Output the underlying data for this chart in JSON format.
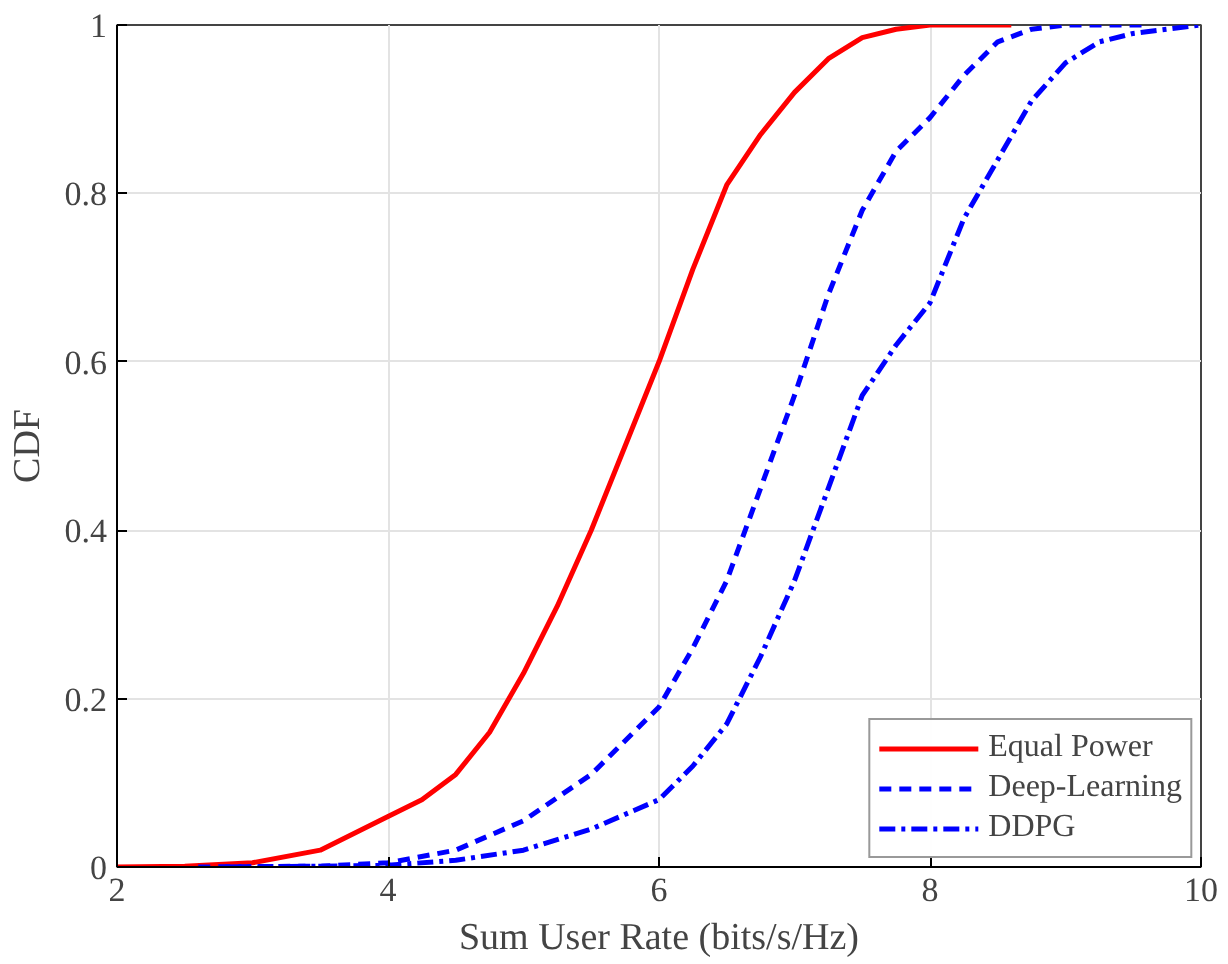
{
  "chart_data": {
    "type": "line",
    "xlabel": "Sum User Rate (bits/s/Hz)",
    "ylabel": "CDF",
    "xlim": [
      2,
      10
    ],
    "ylim": [
      0,
      1
    ],
    "xticks": [
      2,
      4,
      6,
      8,
      10
    ],
    "yticks": [
      0,
      {
        "value": 0.2,
        "label": "0.2"
      },
      {
        "value": 0.4,
        "label": "0.4"
      },
      {
        "value": 0.6,
        "label": "0.6"
      },
      {
        "value": 0.8,
        "label": "0.8"
      },
      1
    ],
    "grid": true,
    "legend": "bottom right",
    "marker": "none",
    "series": [
      {
        "name": "Equal Power",
        "color": "#ff0000",
        "line_style": "solid",
        "x": [
          2,
          2.5,
          3,
          3.5,
          4,
          4.25,
          4.5,
          4.75,
          5,
          5.25,
          5.5,
          5.75,
          6,
          6.25,
          6.5,
          6.75,
          7,
          7.25,
          7.5,
          7.75,
          8,
          8.6
        ],
        "values": [
          0,
          0.001,
          0.005,
          0.02,
          0.06,
          0.08,
          0.11,
          0.16,
          0.23,
          0.31,
          0.4,
          0.5,
          0.6,
          0.71,
          0.81,
          0.87,
          0.92,
          0.96,
          0.985,
          0.995,
          1,
          1
        ]
      },
      {
        "name": "Deep-Learning",
        "color": "#0000ff",
        "line_style": "dashed",
        "x": [
          2.6,
          3.5,
          4,
          4.5,
          5,
          5.5,
          6,
          6.25,
          6.5,
          6.75,
          7,
          7.25,
          7.5,
          7.75,
          8,
          8.25,
          8.5,
          8.75,
          9,
          9.6
        ],
        "values": [
          0,
          0.001,
          0.005,
          0.02,
          0.055,
          0.11,
          0.19,
          0.26,
          0.34,
          0.45,
          0.56,
          0.68,
          0.78,
          0.85,
          0.89,
          0.94,
          0.98,
          0.995,
          1,
          1
        ]
      },
      {
        "name": "DDPG",
        "color": "#0000ff",
        "line_style": "dashdot",
        "x": [
          2.8,
          3.5,
          4,
          4.5,
          5,
          5.5,
          6,
          6.25,
          6.5,
          6.75,
          7,
          7.25,
          7.5,
          7.75,
          8,
          8.25,
          8.5,
          8.75,
          9,
          9.25,
          9.5,
          10
        ],
        "values": [
          0,
          0.001,
          0.002,
          0.008,
          0.02,
          0.045,
          0.08,
          0.12,
          0.17,
          0.25,
          0.34,
          0.45,
          0.56,
          0.62,
          0.67,
          0.77,
          0.84,
          0.91,
          0.955,
          0.98,
          0.99,
          1
        ]
      }
    ]
  }
}
